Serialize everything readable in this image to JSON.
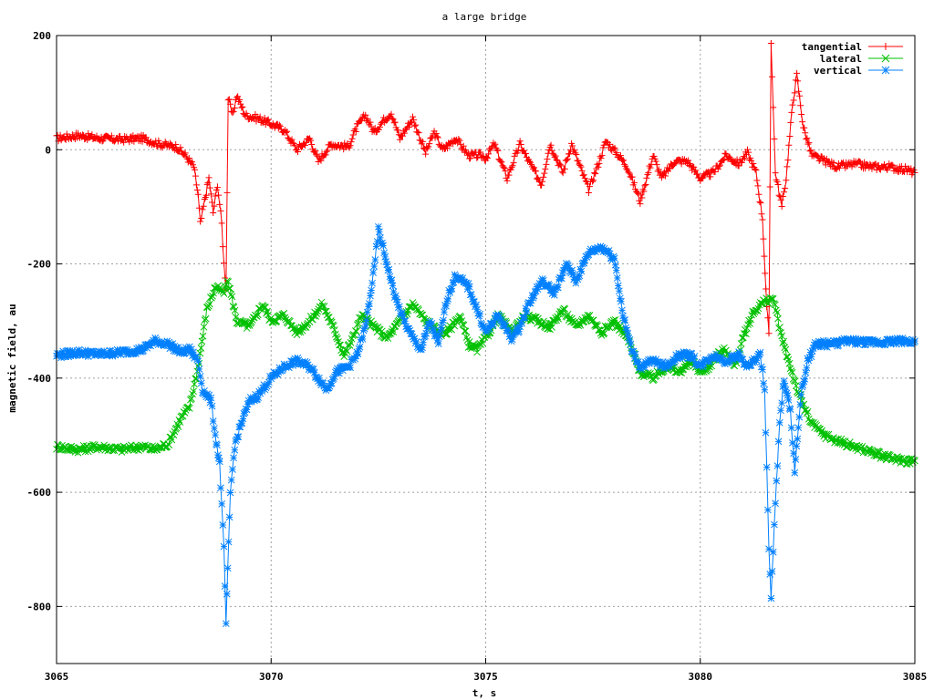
{
  "chart_data": {
    "type": "line",
    "title": "a large bridge",
    "xlabel": "t, s",
    "ylabel": "magnetic field, au",
    "xlim": [
      3065,
      3085
    ],
    "ylim": [
      -900,
      200
    ],
    "xticks": [
      3065,
      3070,
      3075,
      3080,
      3085
    ],
    "yticks": [
      200,
      0,
      -200,
      -400,
      -600,
      -800
    ],
    "grid": true,
    "legend_position": "top-right",
    "series": [
      {
        "name": "tangential",
        "color": "#ff0000",
        "marker": "plus",
        "points": [
          [
            3065.0,
            20
          ],
          [
            3065.5,
            25
          ],
          [
            3066.0,
            20
          ],
          [
            3066.5,
            18
          ],
          [
            3067.0,
            20
          ],
          [
            3067.4,
            10
          ],
          [
            3067.8,
            5
          ],
          [
            3068.0,
            -10
          ],
          [
            3068.2,
            -30
          ],
          [
            3068.3,
            -80
          ],
          [
            3068.35,
            -130
          ],
          [
            3068.45,
            -90
          ],
          [
            3068.55,
            -50
          ],
          [
            3068.65,
            -110
          ],
          [
            3068.75,
            -60
          ],
          [
            3068.85,
            -130
          ],
          [
            3068.9,
            -200
          ],
          [
            3068.95,
            -240
          ],
          [
            3069.0,
            90
          ],
          [
            3069.1,
            60
          ],
          [
            3069.2,
            95
          ],
          [
            3069.4,
            60
          ],
          [
            3069.7,
            55
          ],
          [
            3070.0,
            45
          ],
          [
            3070.3,
            35
          ],
          [
            3070.6,
            0
          ],
          [
            3070.9,
            20
          ],
          [
            3071.1,
            -20
          ],
          [
            3071.4,
            10
          ],
          [
            3071.8,
            5
          ],
          [
            3072.0,
            40
          ],
          [
            3072.2,
            60
          ],
          [
            3072.4,
            30
          ],
          [
            3072.6,
            50
          ],
          [
            3072.8,
            65
          ],
          [
            3073.0,
            20
          ],
          [
            3073.3,
            55
          ],
          [
            3073.6,
            -5
          ],
          [
            3073.8,
            30
          ],
          [
            3074.0,
            0
          ],
          [
            3074.3,
            20
          ],
          [
            3074.6,
            -10
          ],
          [
            3074.9,
            -10
          ],
          [
            3075.0,
            -15
          ],
          [
            3075.2,
            10
          ],
          [
            3075.5,
            -50
          ],
          [
            3075.8,
            10
          ],
          [
            3076.0,
            -20
          ],
          [
            3076.3,
            -60
          ],
          [
            3076.5,
            10
          ],
          [
            3076.8,
            -40
          ],
          [
            3077.0,
            10
          ],
          [
            3077.4,
            -70
          ],
          [
            3077.6,
            -30
          ],
          [
            3077.8,
            15
          ],
          [
            3078.1,
            -10
          ],
          [
            3078.3,
            -30
          ],
          [
            3078.6,
            -90
          ],
          [
            3078.9,
            -10
          ],
          [
            3079.1,
            -50
          ],
          [
            3079.4,
            -20
          ],
          [
            3079.7,
            -20
          ],
          [
            3080.0,
            -50
          ],
          [
            3080.3,
            -40
          ],
          [
            3080.6,
            -10
          ],
          [
            3080.9,
            -25
          ],
          [
            3081.1,
            -5
          ],
          [
            3081.3,
            -40
          ],
          [
            3081.45,
            -120
          ],
          [
            3081.55,
            -280
          ],
          [
            3081.6,
            -320
          ],
          [
            3081.65,
            190
          ],
          [
            3081.75,
            -40
          ],
          [
            3081.9,
            -100
          ],
          [
            3082.0,
            -50
          ],
          [
            3082.15,
            80
          ],
          [
            3082.25,
            130
          ],
          [
            3082.4,
            40
          ],
          [
            3082.6,
            -10
          ],
          [
            3082.9,
            -20
          ],
          [
            3083.2,
            -30
          ],
          [
            3083.6,
            -25
          ],
          [
            3084.0,
            -30
          ],
          [
            3084.4,
            -30
          ],
          [
            3084.8,
            -35
          ],
          [
            3085.0,
            -40
          ]
        ]
      },
      {
        "name": "lateral",
        "color": "#00c000",
        "marker": "cross",
        "points": [
          [
            3065.0,
            -520
          ],
          [
            3065.5,
            -525
          ],
          [
            3066.0,
            -520
          ],
          [
            3066.5,
            -525
          ],
          [
            3067.0,
            -520
          ],
          [
            3067.3,
            -525
          ],
          [
            3067.6,
            -515
          ],
          [
            3067.9,
            -470
          ],
          [
            3068.1,
            -450
          ],
          [
            3068.3,
            -380
          ],
          [
            3068.5,
            -280
          ],
          [
            3068.7,
            -240
          ],
          [
            3068.9,
            -250
          ],
          [
            3069.0,
            -230
          ],
          [
            3069.2,
            -300
          ],
          [
            3069.5,
            -310
          ],
          [
            3069.8,
            -270
          ],
          [
            3070.0,
            -300
          ],
          [
            3070.3,
            -290
          ],
          [
            3070.6,
            -320
          ],
          [
            3070.9,
            -300
          ],
          [
            3071.2,
            -270
          ],
          [
            3071.5,
            -320
          ],
          [
            3071.7,
            -360
          ],
          [
            3071.9,
            -330
          ],
          [
            3072.1,
            -290
          ],
          [
            3072.4,
            -310
          ],
          [
            3072.7,
            -330
          ],
          [
            3073.0,
            -300
          ],
          [
            3073.3,
            -270
          ],
          [
            3073.6,
            -300
          ],
          [
            3073.9,
            -320
          ],
          [
            3074.1,
            -320
          ],
          [
            3074.4,
            -290
          ],
          [
            3074.6,
            -340
          ],
          [
            3074.8,
            -350
          ],
          [
            3075.0,
            -330
          ],
          [
            3075.3,
            -290
          ],
          [
            3075.6,
            -320
          ],
          [
            3075.9,
            -290
          ],
          [
            3076.2,
            -300
          ],
          [
            3076.5,
            -310
          ],
          [
            3076.8,
            -280
          ],
          [
            3077.1,
            -310
          ],
          [
            3077.4,
            -290
          ],
          [
            3077.7,
            -320
          ],
          [
            3078.0,
            -300
          ],
          [
            3078.3,
            -330
          ],
          [
            3078.6,
            -390
          ],
          [
            3078.9,
            -400
          ],
          [
            3079.2,
            -380
          ],
          [
            3079.5,
            -390
          ],
          [
            3079.8,
            -370
          ],
          [
            3080.0,
            -390
          ],
          [
            3080.2,
            -380
          ],
          [
            3080.4,
            -360
          ],
          [
            3080.6,
            -350
          ],
          [
            3080.8,
            -380
          ],
          [
            3081.0,
            -330
          ],
          [
            3081.2,
            -290
          ],
          [
            3081.4,
            -270
          ],
          [
            3081.7,
            -260
          ],
          [
            3081.9,
            -330
          ],
          [
            3082.1,
            -380
          ],
          [
            3082.3,
            -430
          ],
          [
            3082.6,
            -480
          ],
          [
            3082.9,
            -500
          ],
          [
            3083.2,
            -510
          ],
          [
            3083.6,
            -520
          ],
          [
            3084.0,
            -530
          ],
          [
            3084.4,
            -540
          ],
          [
            3084.8,
            -545
          ],
          [
            3085.0,
            -545
          ]
        ]
      },
      {
        "name": "vertical",
        "color": "#0080ff",
        "marker": "star",
        "points": [
          [
            3065.0,
            -360
          ],
          [
            3065.5,
            -355
          ],
          [
            3066.0,
            -358
          ],
          [
            3066.5,
            -355
          ],
          [
            3067.0,
            -350
          ],
          [
            3067.3,
            -335
          ],
          [
            3067.6,
            -340
          ],
          [
            3067.9,
            -355
          ],
          [
            3068.1,
            -350
          ],
          [
            3068.3,
            -370
          ],
          [
            3068.4,
            -420
          ],
          [
            3068.6,
            -440
          ],
          [
            3068.7,
            -500
          ],
          [
            3068.8,
            -550
          ],
          [
            3068.9,
            -700
          ],
          [
            3068.95,
            -830
          ],
          [
            3069.05,
            -600
          ],
          [
            3069.15,
            -520
          ],
          [
            3069.3,
            -480
          ],
          [
            3069.5,
            -440
          ],
          [
            3069.7,
            -430
          ],
          [
            3069.9,
            -410
          ],
          [
            3070.0,
            -400
          ],
          [
            3070.3,
            -380
          ],
          [
            3070.6,
            -370
          ],
          [
            3070.9,
            -380
          ],
          [
            3071.1,
            -400
          ],
          [
            3071.3,
            -420
          ],
          [
            3071.5,
            -390
          ],
          [
            3071.8,
            -380
          ],
          [
            3072.0,
            -360
          ],
          [
            3072.2,
            -310
          ],
          [
            3072.4,
            -210
          ],
          [
            3072.5,
            -140
          ],
          [
            3072.7,
            -200
          ],
          [
            3072.9,
            -260
          ],
          [
            3073.1,
            -300
          ],
          [
            3073.3,
            -330
          ],
          [
            3073.5,
            -350
          ],
          [
            3073.7,
            -300
          ],
          [
            3073.9,
            -340
          ],
          [
            3074.1,
            -260
          ],
          [
            3074.3,
            -220
          ],
          [
            3074.6,
            -240
          ],
          [
            3074.8,
            -280
          ],
          [
            3075.0,
            -320
          ],
          [
            3075.3,
            -290
          ],
          [
            3075.6,
            -330
          ],
          [
            3075.8,
            -310
          ],
          [
            3076.0,
            -270
          ],
          [
            3076.3,
            -230
          ],
          [
            3076.6,
            -250
          ],
          [
            3076.9,
            -200
          ],
          [
            3077.1,
            -230
          ],
          [
            3077.4,
            -180
          ],
          [
            3077.7,
            -170
          ],
          [
            3078.0,
            -190
          ],
          [
            3078.2,
            -290
          ],
          [
            3078.4,
            -350
          ],
          [
            3078.6,
            -380
          ],
          [
            3078.9,
            -370
          ],
          [
            3079.2,
            -380
          ],
          [
            3079.5,
            -360
          ],
          [
            3079.8,
            -360
          ],
          [
            3080.0,
            -380
          ],
          [
            3080.3,
            -360
          ],
          [
            3080.6,
            -370
          ],
          [
            3080.9,
            -360
          ],
          [
            3081.1,
            -380
          ],
          [
            3081.4,
            -360
          ],
          [
            3081.5,
            -420
          ],
          [
            3081.55,
            -560
          ],
          [
            3081.6,
            -700
          ],
          [
            3081.65,
            -785
          ],
          [
            3081.75,
            -620
          ],
          [
            3081.85,
            -480
          ],
          [
            3081.95,
            -400
          ],
          [
            3082.1,
            -460
          ],
          [
            3082.2,
            -560
          ],
          [
            3082.35,
            -430
          ],
          [
            3082.5,
            -370
          ],
          [
            3082.7,
            -340
          ],
          [
            3083.0,
            -340
          ],
          [
            3083.5,
            -335
          ],
          [
            3084.0,
            -338
          ],
          [
            3084.5,
            -335
          ],
          [
            3085.0,
            -335
          ]
        ]
      }
    ]
  }
}
